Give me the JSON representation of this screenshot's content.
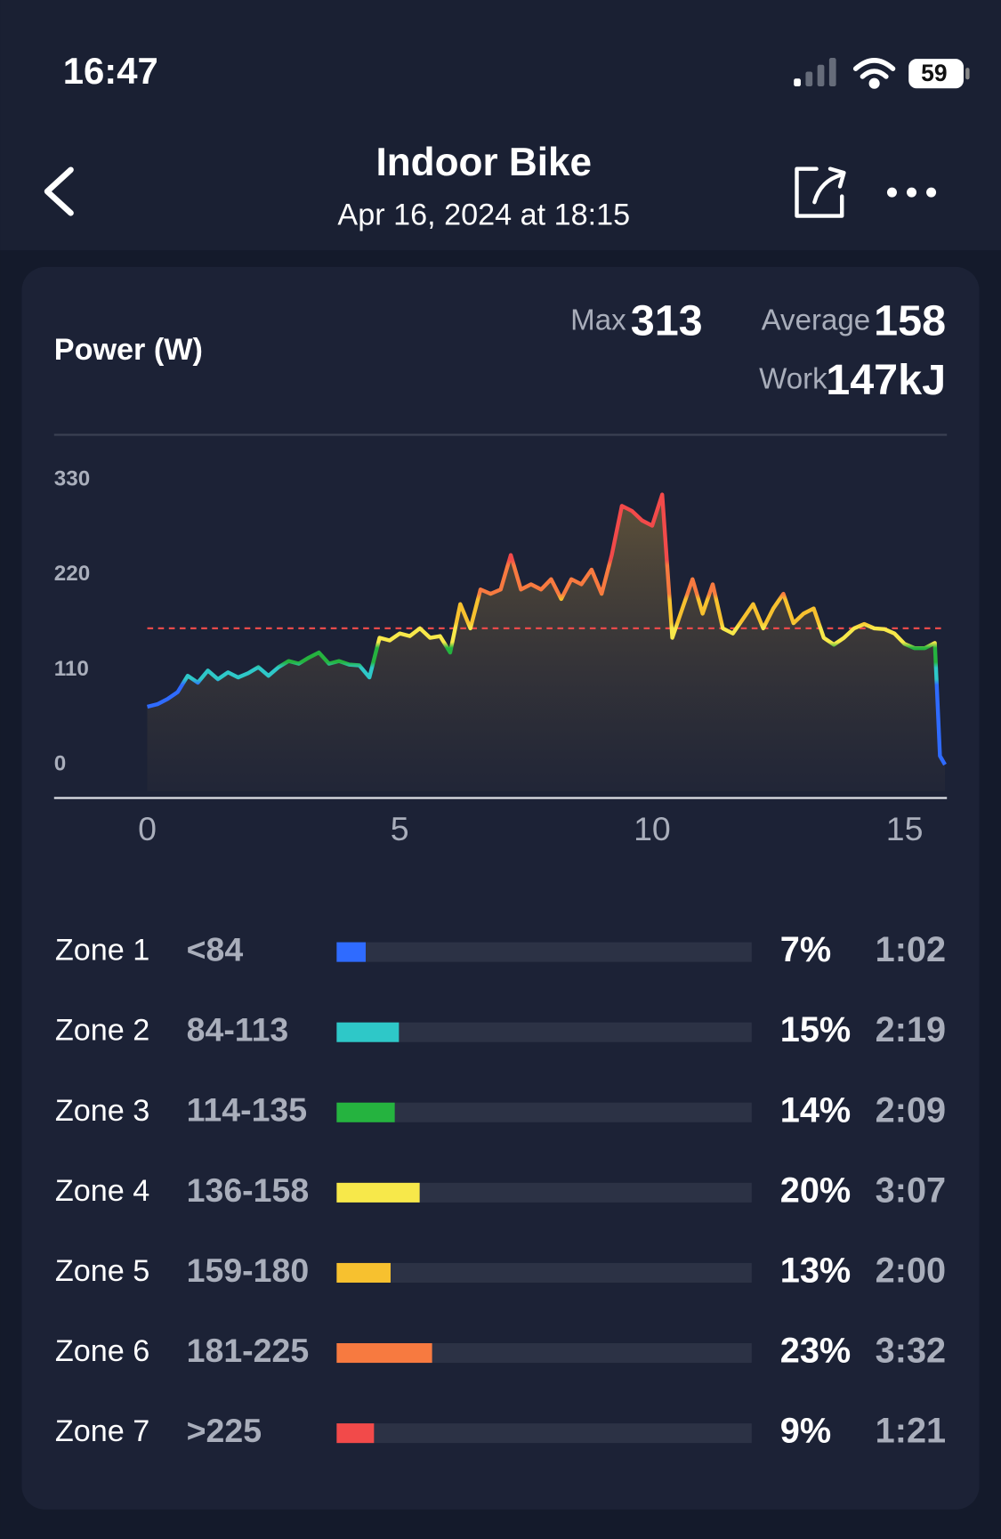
{
  "status_bar": {
    "time": "16:47",
    "battery": "59"
  },
  "header": {
    "title": "Indoor Bike",
    "subtitle": "Apr 16, 2024 at 18:15"
  },
  "power": {
    "title": "Power (W)",
    "max_label": "Max",
    "max": 313,
    "average_label": "Average",
    "average": 158,
    "work_label": "Work",
    "work": "147kJ"
  },
  "chart_data": {
    "type": "line",
    "x": [
      0,
      0.2,
      0.4,
      0.6,
      0.8,
      1,
      1.2,
      1.4,
      1.6,
      1.8,
      2,
      2.2,
      2.4,
      2.6,
      2.8,
      3,
      3.2,
      3.4,
      3.6,
      3.8,
      4,
      4.2,
      4.4,
      4.6,
      4.8,
      5,
      5.2,
      5.4,
      5.6,
      5.8,
      6,
      6.2,
      6.4,
      6.6,
      6.8,
      7,
      7.2,
      7.4,
      7.6,
      7.8,
      8,
      8.2,
      8.4,
      8.6,
      8.8,
      9,
      9.2,
      9.4,
      9.6,
      9.8,
      10,
      10.2,
      10.4,
      10.6,
      10.8,
      11,
      11.2,
      11.4,
      11.6,
      11.8,
      12,
      12.2,
      12.4,
      12.6,
      12.8,
      13,
      13.2,
      13.4,
      13.6,
      13.8,
      14,
      14.2,
      14.4,
      14.6,
      14.8,
      15,
      15.2,
      15.4,
      15.6,
      15.7,
      15.8
    ],
    "values": [
      67,
      70,
      76,
      84,
      103,
      95,
      109,
      99,
      107,
      101,
      106,
      113,
      103,
      113,
      120,
      117,
      124,
      130,
      117,
      120,
      116,
      115,
      101,
      147,
      144,
      152,
      149,
      158,
      147,
      149,
      130,
      186,
      158,
      203,
      198,
      203,
      243,
      203,
      209,
      203,
      215,
      192,
      215,
      209,
      226,
      198,
      243,
      300,
      294,
      283,
      277,
      313,
      147,
      181,
      215,
      175,
      209,
      158,
      152,
      169,
      186,
      158,
      181,
      198,
      164,
      175,
      181,
      147,
      139,
      147,
      158,
      163,
      158,
      157,
      152,
      140,
      135,
      135,
      141,
      10,
      0
    ],
    "xlim": [
      0,
      15.8
    ],
    "ylim": [
      0,
      330
    ],
    "xticks": [
      0,
      5,
      10,
      15
    ],
    "yticks": [
      0,
      110,
      220,
      330
    ]
  },
  "zones": [
    {
      "name": "Zone 1",
      "range": "<84",
      "percent": {
        "value": 7,
        "label": "7%"
      },
      "time": "1:02",
      "color": "#2f6bff"
    },
    {
      "name": "Zone 2",
      "range": "84-113",
      "percent": {
        "value": 15,
        "label": "15%"
      },
      "time": "2:19",
      "color": "#2ec8c8"
    },
    {
      "name": "Zone 3",
      "range": "114-135",
      "percent": {
        "value": 14,
        "label": "14%"
      },
      "time": "2:09",
      "color": "#25b33f"
    },
    {
      "name": "Zone 4",
      "range": "136-158",
      "percent": {
        "value": 20,
        "label": "20%"
      },
      "time": "3:07",
      "color": "#f7e84a"
    },
    {
      "name": "Zone 5",
      "range": "159-180",
      "percent": {
        "value": 13,
        "label": "13%"
      },
      "time": "2:00",
      "color": "#f7c12f"
    },
    {
      "name": "Zone 6",
      "range": "181-225",
      "percent": {
        "value": 23,
        "label": "23%"
      },
      "time": "3:32",
      "color": "#f77a40"
    },
    {
      "name": "Zone 7",
      "range": ">225",
      "percent": {
        "value": 9,
        "label": "9%"
      },
      "time": "1:21",
      "color": "#f24a4a"
    }
  ]
}
